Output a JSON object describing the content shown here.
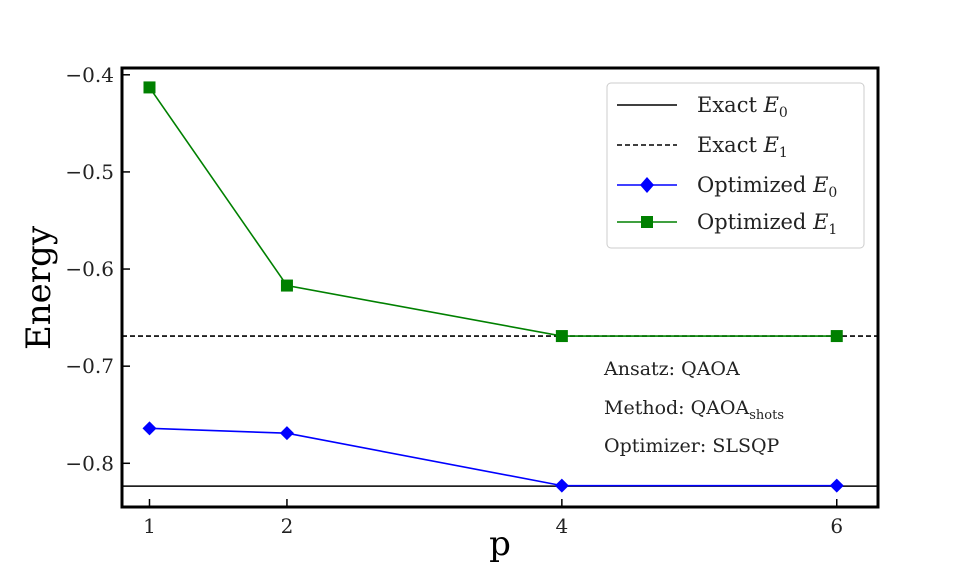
{
  "chart_data": {
    "type": "line",
    "title": "",
    "xlabel": "p",
    "ylabel": "Energy",
    "x_ticks": [
      1,
      2,
      4,
      6
    ],
    "y_ticks": [
      -0.8,
      -0.7,
      -0.6,
      -0.5,
      -0.4
    ],
    "y_tick_labels": [
      "−0.8",
      "−0.7",
      "−0.6",
      "−0.5",
      "−0.4"
    ],
    "xlim": [
      0.8,
      6.3
    ],
    "ylim": [
      -0.845,
      -0.393
    ],
    "grid": false,
    "legend_position": "top-right",
    "reference_lines": [
      {
        "name": "Exact E0",
        "label_main": "Exact ",
        "label_math": "E",
        "label_sub": "0",
        "y": -0.8235,
        "color": "#000000",
        "style": "solid"
      },
      {
        "name": "Exact E1",
        "label_main": "Exact ",
        "label_math": "E",
        "label_sub": "1",
        "y": -0.669,
        "color": "#000000",
        "style": "dashed"
      }
    ],
    "series": [
      {
        "name": "Optimized E0",
        "label_main": "Optimized ",
        "label_math": "E",
        "label_sub": "0",
        "color": "#0000ff",
        "marker": "diamond",
        "x": [
          1,
          2,
          4,
          6
        ],
        "values": [
          -0.764,
          -0.769,
          -0.823,
          -0.823
        ]
      },
      {
        "name": "Optimized E1",
        "label_main": "Optimized ",
        "label_math": "E",
        "label_sub": "1",
        "color": "#008000",
        "marker": "square",
        "x": [
          1,
          2,
          4,
          6
        ],
        "values": [
          -0.413,
          -0.617,
          -0.669,
          -0.669
        ]
      }
    ],
    "annotations": {
      "ansatz": "Ansatz: QAOA",
      "method_main": "Method: QAOA",
      "method_sub": "shots",
      "optimizer": "Optimizer: SLSQP"
    }
  }
}
